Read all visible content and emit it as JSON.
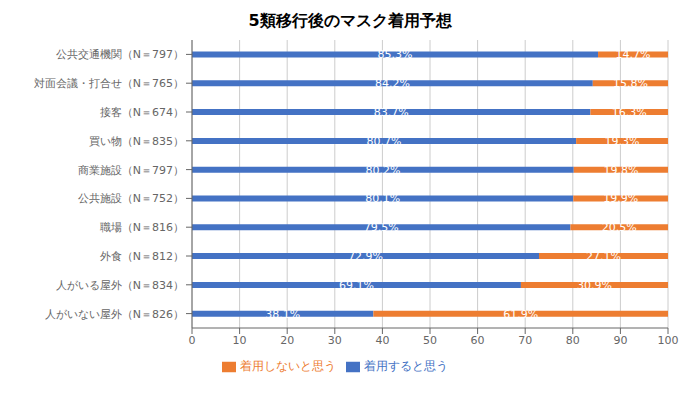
{
  "chart_data": {
    "type": "bar",
    "title": "5類移行後のマスク着用予想",
    "orientation": "horizontal",
    "stacked": true,
    "data_labels": true,
    "grid": true,
    "legend": "bottom",
    "categories": [
      "公共交通機関（N＝797）",
      "対面会議・打合せ（N＝765）",
      "接客（N＝674）",
      "買い物（N＝835）",
      "商業施設（N＝797）",
      "公共施設（N＝752）",
      "職場（N＝816）",
      "外食（N＝812）",
      "人がいる屋外（N＝834）",
      "人がいない屋外（N＝826）"
    ],
    "series": [
      {
        "name": "着用すると思う",
        "color": "#4472c4",
        "values": [
          85.3,
          84.2,
          83.7,
          80.7,
          80.2,
          80.1,
          79.5,
          72.9,
          69.1,
          38.1
        ],
        "value_labels": [
          "85.3%",
          "84.2%",
          "83.7%",
          "80.7%",
          "80.2%",
          "80.1%",
          "79.5%",
          "72.9%",
          "69.1%",
          "38.1%"
        ]
      },
      {
        "name": "着用しないと思う",
        "color": "#ed7d31",
        "values": [
          14.7,
          15.8,
          16.3,
          19.3,
          19.8,
          19.9,
          20.5,
          27.1,
          30.9,
          61.9
        ],
        "value_labels": [
          "14.7%",
          "15.8%",
          "16.3%",
          "19.3%",
          "19.8%",
          "19.9%",
          "20.5%",
          "27.1%",
          "30.9%",
          "61.9%"
        ]
      }
    ],
    "xlim": [
      0,
      100
    ],
    "xticks": [
      0,
      10,
      20,
      30,
      40,
      50,
      60,
      70,
      80,
      90,
      100
    ]
  }
}
